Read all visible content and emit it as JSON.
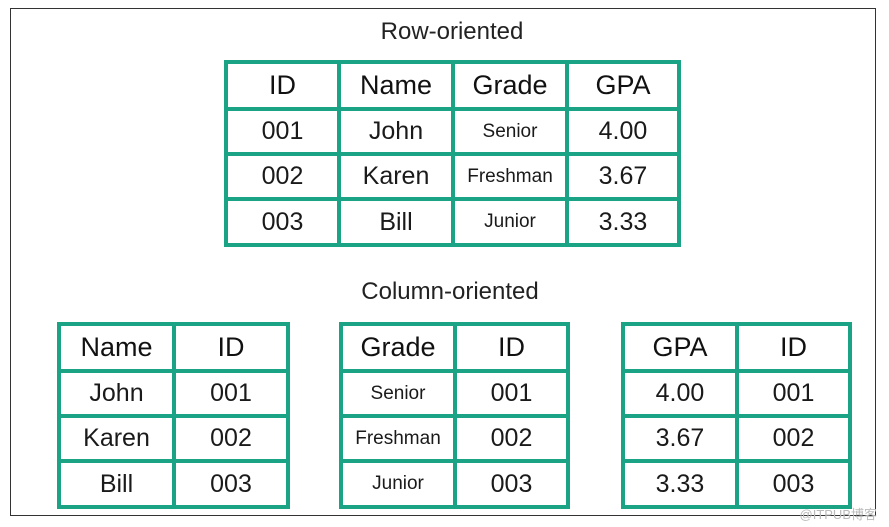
{
  "row_section": {
    "title": "Row-oriented",
    "table": {
      "headers": [
        "ID",
        "Name",
        "Grade",
        "GPA"
      ],
      "rows": [
        [
          "001",
          "John",
          "Senior",
          "4.00"
        ],
        [
          "002",
          "Karen",
          "Freshman",
          "3.67"
        ],
        [
          "003",
          "Bill",
          "Junior",
          "3.33"
        ]
      ]
    }
  },
  "column_section": {
    "title": "Column-oriented",
    "tables": [
      {
        "headers": [
          "Name",
          "ID"
        ],
        "rows": [
          [
            "John",
            "001"
          ],
          [
            "Karen",
            "002"
          ],
          [
            "Bill",
            "003"
          ]
        ]
      },
      {
        "headers": [
          "Grade",
          "ID"
        ],
        "rows": [
          [
            "Senior",
            "001"
          ],
          [
            "Freshman",
            "002"
          ],
          [
            "Junior",
            "003"
          ]
        ]
      },
      {
        "headers": [
          "GPA",
          "ID"
        ],
        "rows": [
          [
            "4.00",
            "001"
          ],
          [
            "3.67",
            "002"
          ],
          [
            "3.33",
            "003"
          ]
        ]
      }
    ]
  },
  "watermark": "@ITPUB博客",
  "colors": {
    "table_border": "#1aa385",
    "frame_border": "#333333",
    "text": "#1a1a1a"
  },
  "small_text_values": [
    "Senior",
    "Freshman",
    "Junior"
  ]
}
